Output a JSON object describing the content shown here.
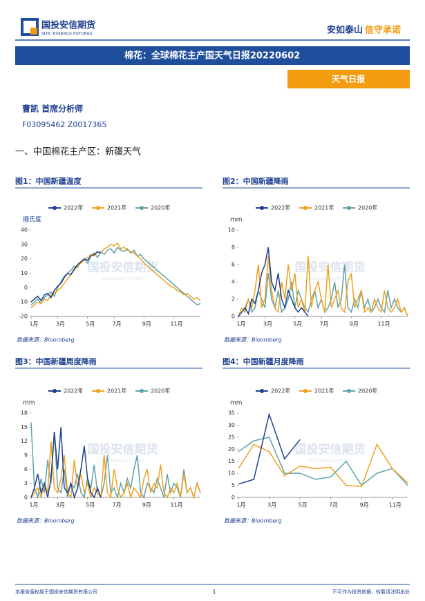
{
  "header": {
    "logo": "国投安信期货",
    "logo_en": "SDIC ESSENCE FUTURES",
    "slogan_a": "安如泰山",
    "slogan_b": "信守承诺"
  },
  "title": "棉花：全球棉花主产国天气日报20220602",
  "tag": "天气日报",
  "author": "曹凯 首席分析师",
  "author_id": "F03095462 Z0017365",
  "section": "一、中国棉花主产区：新疆天气",
  "watermark": "国投安信期货",
  "watermark_en": "SDIC ESSENCE FUTURES",
  "footer": {
    "left": "本报告版权属于国投安信期货有限公司",
    "page": "1",
    "right": "不可作为投资依据，转载请注明出处"
  },
  "chart_data": [
    {
      "type": "line",
      "title": "图1：中国新疆温度",
      "y_label": "摄氏度",
      "source": "数据来源：Bloomberg",
      "x": [
        1,
        2,
        3,
        4,
        5,
        6,
        7,
        8,
        9,
        10,
        11,
        12,
        13,
        14,
        15,
        16,
        17,
        18,
        19,
        20,
        21,
        22,
        23,
        24,
        25,
        26,
        27,
        28,
        29,
        30,
        31,
        32,
        33,
        34,
        35,
        36,
        37,
        38,
        39,
        40,
        41,
        42,
        43,
        44,
        45,
        46,
        47,
        48,
        49,
        50,
        51,
        52
      ],
      "xlim": [
        1,
        52
      ],
      "xticks": [
        {
          "value": 1,
          "label": "1月"
        },
        {
          "value": 9,
          "label": "3月"
        },
        {
          "value": 18,
          "label": "5月"
        },
        {
          "value": 26,
          "label": "7月"
        },
        {
          "value": 35,
          "label": "9月"
        },
        {
          "value": 44,
          "label": "11月"
        }
      ],
      "ylim": [
        -20,
        40
      ],
      "yticks": [
        -20,
        -10,
        0,
        10,
        20,
        30,
        40
      ],
      "series": [
        {
          "name": "2022年",
          "color": "#1f3f8f",
          "values": [
            -10,
            -8,
            -6,
            -9,
            -5,
            -4,
            -7,
            -2,
            1,
            3,
            7,
            10,
            9,
            13,
            16,
            18,
            20,
            19,
            22,
            23,
            25,
            24,
            null,
            null,
            null,
            null,
            null,
            null,
            null,
            null,
            null,
            null,
            null,
            null,
            null,
            null,
            null,
            null,
            null,
            null,
            null,
            null,
            null,
            null,
            null,
            null,
            null,
            null,
            null,
            null,
            null,
            null
          ]
        },
        {
          "name": "2021年",
          "color": "#f0a01e",
          "values": [
            -14,
            -12,
            -10,
            -11,
            -8,
            -9,
            -5,
            -4,
            -2,
            0,
            3,
            6,
            9,
            12,
            15,
            17,
            19,
            21,
            23,
            22,
            25,
            24,
            27,
            28,
            30,
            29,
            31,
            27,
            28,
            26,
            25,
            24,
            22,
            20,
            17,
            15,
            13,
            11,
            9,
            7,
            5,
            3,
            1,
            0,
            -2,
            -3,
            -5,
            -4,
            -6,
            -8,
            -7,
            -9
          ]
        },
        {
          "name": "2020年",
          "color": "#5fa3a8",
          "values": [
            -12,
            -10,
            -8,
            -11,
            -7,
            -5,
            -3,
            -6,
            0,
            4,
            8,
            10,
            12,
            15,
            14,
            18,
            20,
            17,
            22,
            24,
            21,
            25,
            23,
            26,
            27,
            24,
            28,
            26,
            25,
            27,
            24,
            26,
            22,
            23,
            20,
            18,
            16,
            14,
            12,
            10,
            8,
            6,
            4,
            2,
            0,
            -2,
            -4,
            -6,
            -8,
            -10,
            -12,
            -11
          ]
        }
      ]
    },
    {
      "type": "line",
      "title": "图2：中国新疆降雨",
      "y_label": "mm",
      "source": "数据来源：Bloomberg",
      "x": [
        1,
        2,
        3,
        4,
        5,
        6,
        7,
        8,
        9,
        10,
        11,
        12,
        13,
        14,
        15,
        16,
        17,
        18,
        19,
        20,
        21,
        22,
        23,
        24,
        25,
        26,
        27,
        28,
        29,
        30,
        31,
        32,
        33,
        34,
        35,
        36,
        37,
        38,
        39,
        40,
        41,
        42,
        43,
        44,
        45,
        46,
        47,
        48,
        49,
        50,
        51,
        52
      ],
      "xlim": [
        1,
        52
      ],
      "xticks": [
        {
          "value": 1,
          "label": "1月"
        },
        {
          "value": 9,
          "label": "3月"
        },
        {
          "value": 18,
          "label": "5月"
        },
        {
          "value": 26,
          "label": "7月"
        },
        {
          "value": 35,
          "label": "9月"
        },
        {
          "value": 44,
          "label": "11月"
        }
      ],
      "ylim": [
        0,
        10
      ],
      "yticks": [
        0,
        2,
        4,
        6,
        8,
        10
      ],
      "series": [
        {
          "name": "2022年",
          "color": "#1f3f8f",
          "values": [
            0,
            0.5,
            1,
            0.3,
            2,
            1.5,
            3,
            5,
            6,
            8,
            4,
            3,
            5,
            2,
            1,
            3,
            2,
            1,
            0.5,
            1,
            0.5,
            0,
            null,
            null,
            null,
            null,
            null,
            null,
            null,
            null,
            null,
            null,
            null,
            null,
            null,
            null,
            null,
            null,
            null,
            null,
            null,
            null,
            null,
            null,
            null,
            null,
            null,
            null,
            null,
            null,
            null,
            null
          ]
        },
        {
          "name": "2021年",
          "color": "#f0a01e",
          "values": [
            0,
            1,
            0.5,
            2,
            1,
            3,
            6,
            1,
            2,
            7,
            3,
            1,
            0.5,
            4,
            2,
            6,
            3,
            5,
            1,
            2,
            0.5,
            7,
            1,
            3,
            4,
            2,
            0.5,
            6,
            1,
            2,
            3,
            1,
            0.5,
            4,
            5,
            1,
            2,
            3,
            0.5,
            1,
            0.5,
            2,
            1,
            0.5,
            3,
            1,
            0.5,
            1,
            2,
            0.5,
            1,
            0
          ]
        },
        {
          "name": "2020年",
          "color": "#5fa3a8",
          "values": [
            0,
            0.5,
            1,
            2,
            0.5,
            1,
            3,
            2,
            1,
            5,
            2,
            1,
            3,
            0.5,
            1,
            2,
            4,
            1,
            3,
            2,
            1,
            0.5,
            2,
            3,
            1,
            2,
            0.5,
            1,
            2,
            4,
            1,
            2,
            6,
            1,
            0.5,
            2,
            1,
            3,
            1,
            2,
            0.5,
            1,
            2,
            1,
            0.5,
            3,
            1,
            2,
            1,
            0.5,
            1,
            0
          ]
        }
      ]
    },
    {
      "type": "line",
      "title": "图3：中国新疆周度降雨",
      "y_label": "mm",
      "source": "数据来源：Bloomberg",
      "x": [
        1,
        2,
        3,
        4,
        5,
        6,
        7,
        8,
        9,
        10,
        11,
        12,
        13,
        14,
        15,
        16,
        17,
        18,
        19,
        20,
        21,
        22,
        23,
        24,
        25,
        26,
        27,
        28,
        29,
        30,
        31,
        32,
        33,
        34,
        35,
        36,
        37,
        38,
        39,
        40,
        41,
        42,
        43,
        44,
        45,
        46,
        47,
        48,
        49,
        50,
        51,
        52
      ],
      "xlim": [
        1,
        52
      ],
      "xticks": [
        {
          "value": 1,
          "label": "1月"
        },
        {
          "value": 9,
          "label": "3月"
        },
        {
          "value": 18,
          "label": "5月"
        },
        {
          "value": 26,
          "label": "7月"
        },
        {
          "value": 35,
          "label": "9月"
        },
        {
          "value": 44,
          "label": "11月"
        }
      ],
      "ylim": [
        0,
        18
      ],
      "yticks": [
        0,
        3,
        6,
        9,
        12,
        15,
        18
      ],
      "series": [
        {
          "name": "2022年",
          "color": "#1f3f8f",
          "values": [
            0,
            2,
            5,
            1,
            3,
            0,
            4,
            14,
            6,
            15,
            2,
            1,
            3,
            0,
            2,
            6,
            11,
            4,
            1,
            0,
            2,
            0,
            null,
            null,
            null,
            null,
            null,
            null,
            null,
            null,
            null,
            null,
            null,
            null,
            null,
            null,
            null,
            null,
            null,
            null,
            null,
            null,
            null,
            null,
            null,
            null,
            null,
            null,
            null,
            null,
            null,
            null
          ]
        },
        {
          "name": "2021年",
          "color": "#f0a01e",
          "values": [
            0,
            1,
            2,
            0,
            3,
            1,
            12,
            2,
            1,
            4,
            9,
            1,
            0,
            8,
            2,
            5,
            1,
            3,
            0,
            2,
            1,
            0,
            9,
            1,
            0,
            6,
            2,
            0,
            1,
            3,
            0,
            2,
            1,
            0,
            4,
            6,
            1,
            3,
            2,
            7,
            1,
            0,
            2,
            1,
            3,
            0,
            5,
            1,
            2,
            0,
            3,
            1
          ]
        },
        {
          "name": "2020年",
          "color": "#5fa3a8",
          "values": [
            16,
            2,
            0,
            4,
            1,
            8,
            3,
            14,
            2,
            1,
            6,
            0,
            3,
            2,
            5,
            1,
            0,
            4,
            2,
            7,
            1,
            0,
            3,
            9,
            1,
            2,
            0,
            3,
            1,
            4,
            2,
            6,
            9,
            1,
            0,
            3,
            2,
            1,
            4,
            2,
            0,
            5,
            1,
            3,
            2,
            0,
            6,
            1,
            2,
            0,
            3,
            1
          ]
        }
      ]
    },
    {
      "type": "line",
      "title": "图4：中国新疆月度降雨",
      "y_label": "mm",
      "source": "数据来源：Bloomberg",
      "x": [
        1,
        2,
        3,
        4,
        5,
        6,
        7,
        8,
        9,
        10,
        11,
        12
      ],
      "xlim": [
        1,
        12
      ],
      "xticks": [
        {
          "value": 1,
          "label": "1月"
        },
        {
          "value": 3,
          "label": "3月"
        },
        {
          "value": 5,
          "label": "5月"
        },
        {
          "value": 7,
          "label": "7月"
        },
        {
          "value": 9,
          "label": "9月"
        },
        {
          "value": 11,
          "label": "11月"
        }
      ],
      "ylim": [
        0,
        35
      ],
      "yticks": [
        0,
        5,
        10,
        15,
        20,
        25,
        30,
        35
      ],
      "series": [
        {
          "name": "2022年",
          "color": "#1f3f8f",
          "values": [
            5.5,
            7.5,
            34.5,
            16,
            24,
            null,
            null,
            null,
            null,
            null,
            null,
            null
          ]
        },
        {
          "name": "2021年",
          "color": "#f0a01e",
          "values": [
            12,
            22,
            19,
            9,
            13,
            12,
            12.5,
            5,
            4.5,
            22,
            12,
            6
          ]
        },
        {
          "name": "2020年",
          "color": "#5fa3a8",
          "values": [
            19,
            23.5,
            25,
            10,
            10,
            7.5,
            8.5,
            15,
            5,
            10,
            12,
            5
          ]
        }
      ]
    }
  ]
}
